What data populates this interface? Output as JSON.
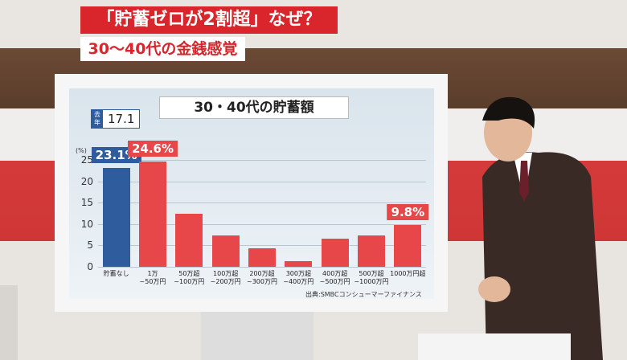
{
  "captions": {
    "headline": "「貯蓄ゼロが2割超」なぜ？",
    "subhead": "30〜40代の金銭感覚"
  },
  "chart_data": {
    "type": "bar",
    "title": "30・40代の貯蓄額",
    "y_unit": "(%)",
    "categories": [
      "貯蓄なし",
      "1万\n~50万円",
      "50万超\n~100万円",
      "100万超\n~200万円",
      "200万超\n~300万円",
      "300万超\n~400万円",
      "400万超\n~500万円",
      "500万超\n~1000万円",
      "1000万円超"
    ],
    "values": [
      23.1,
      24.6,
      12.4,
      7.3,
      4.3,
      1.3,
      6.6,
      7.3,
      9.8
    ],
    "value_labels": [
      "23.1%",
      "24.6%",
      null,
      null,
      null,
      null,
      null,
      null,
      "9.8%"
    ],
    "colors": [
      "#2f5c9c",
      "#e8474a",
      "#e8474a",
      "#e8474a",
      "#e8474a",
      "#e8474a",
      "#e8474a",
      "#e8474a",
      "#e8474a"
    ],
    "ylim": [
      0,
      25
    ],
    "yticks": [
      0,
      5,
      10,
      15,
      20,
      25
    ],
    "last_year": {
      "label": "去年",
      "value": 17.1
    },
    "source": "出典:SMBCコンシューマーファイナンス"
  }
}
